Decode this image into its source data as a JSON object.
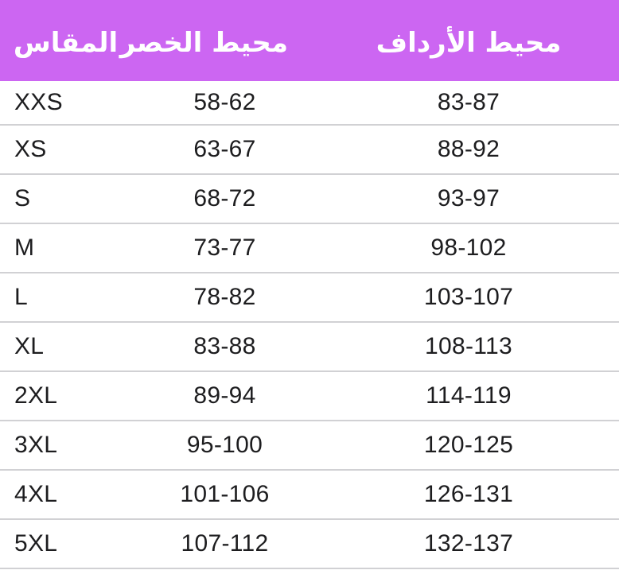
{
  "header": {
    "background_color": "#cc66f2",
    "text_color": "#ffffff",
    "columns": [
      {
        "key": "size",
        "label": "المقاس"
      },
      {
        "key": "waist",
        "label": "محيط الخصر"
      },
      {
        "key": "hips",
        "label": "محيط الأرداف"
      }
    ]
  },
  "table": {
    "rows": [
      {
        "size": "XXS",
        "waist": "58-62",
        "hips": "83-87"
      },
      {
        "size": "XS",
        "waist": "63-67",
        "hips": "88-92"
      },
      {
        "size": "S",
        "waist": "68-72",
        "hips": "93-97"
      },
      {
        "size": "M",
        "waist": "73-77",
        "hips": "98-102"
      },
      {
        "size": "L",
        "waist": "78-82",
        "hips": "103-107"
      },
      {
        "size": "XL",
        "waist": "83-88",
        "hips": "108-113"
      },
      {
        "size": "2XL",
        "waist": "89-94",
        "hips": "114-119"
      },
      {
        "size": "3XL",
        "waist": "95-100",
        "hips": "120-125"
      },
      {
        "size": "4XL",
        "waist": "101-106",
        "hips": "126-131"
      },
      {
        "size": "5XL",
        "waist": "107-112",
        "hips": "132-137"
      }
    ]
  },
  "colors": {
    "divider": "#d1d1d4",
    "body_text": "#1d1d1f"
  }
}
